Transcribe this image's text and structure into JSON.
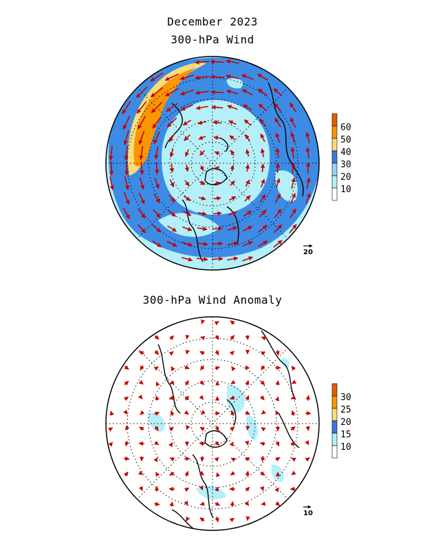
{
  "header": {
    "month_title": "December 2023",
    "panel1_title": "300-hPa Wind",
    "panel2_title": "300-hPa Wind Anomaly"
  },
  "panel1": {
    "colorbar": {
      "labels": [
        "10",
        "20",
        "30",
        "40",
        "50",
        "60"
      ],
      "colors": [
        "#ffffff",
        "#b4f0fa",
        "#96d2fa",
        "#3c78dc",
        "#fadc78",
        "#fa9600",
        "#e65a00"
      ]
    },
    "reference_vector_label": "20"
  },
  "panel2": {
    "colorbar": {
      "labels": [
        "10",
        "15",
        "20",
        "25",
        "30"
      ],
      "colors": [
        "#ffffff",
        "#b4f0fa",
        "#3c78dc",
        "#fadc78",
        "#fa9600",
        "#e65a00"
      ]
    },
    "reference_vector_label": "10"
  },
  "style": {
    "vector_color": "#c80000",
    "light_fill": "#b4f0fa",
    "mid_fill": "#3c8ce6"
  }
}
